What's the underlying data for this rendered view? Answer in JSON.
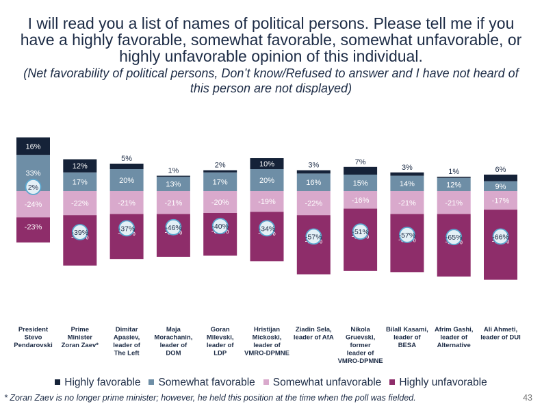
{
  "title": "I will read you a list of names of political persons. Please tell me if you have a highly favorable, somewhat favorable, somewhat unfavorable, or highly unfavorable opinion of this individual.",
  "subtitle": "(Net favorability of political persons, Don’t know/Refused to answer and I have not heard of this person are not displayed)",
  "footnote": "* Zoran Zaev is no longer prime minister; however, he held this position at the time when the poll was fielded.",
  "page_number": "43",
  "colors": {
    "highly_favorable": "#152238",
    "somewhat_favorable": "#6e8ea6",
    "somewhat_unfavorable": "#d9a9cc",
    "highly_unfavorable": "#8e2d6a",
    "net_badge_fill": "#e4f0f6",
    "net_badge_stroke": "#5aa7cf"
  },
  "chart_data": {
    "type": "bar",
    "stacked": "diverging",
    "categories": [
      [
        "President",
        "Stevo",
        "Pendarovski"
      ],
      [
        "Prime",
        "Minister",
        "Zoran Zaev*"
      ],
      [
        "Dimitar",
        "Apasiev,",
        "leader of",
        "The Left"
      ],
      [
        "Maja",
        "Morachanin,",
        "leader of",
        "DOM"
      ],
      [
        "Goran",
        "Milevski,",
        "leader of",
        "LDP"
      ],
      [
        "Hristijan",
        "Mickoski,",
        "leader of",
        "VMRO-DPMNE"
      ],
      [
        "Ziadin Sela,",
        "leader of AfA"
      ],
      [
        "Nikola",
        "Gruevski,",
        "former",
        "leader of",
        "VMRO-DPMNE"
      ],
      [
        "Bilall Kasami,",
        "leader of",
        "BESA"
      ],
      [
        "Afrim Gashi,",
        "leader of",
        "Alternative"
      ],
      [
        "Ali Ahmeti,",
        "leader of DUI"
      ]
    ],
    "series": [
      {
        "name": "Highly favorable",
        "values": [
          16,
          12,
          5,
          1,
          2,
          10,
          3,
          7,
          3,
          1,
          6
        ]
      },
      {
        "name": "Somewhat favorable",
        "values": [
          33,
          17,
          20,
          13,
          17,
          20,
          16,
          15,
          14,
          12,
          9
        ]
      },
      {
        "name": "Somewhat unfavorable",
        "values": [
          -24,
          -22,
          -21,
          -21,
          -20,
          -19,
          -22,
          -16,
          -21,
          -21,
          -17
        ]
      },
      {
        "name": "Highly unfavorable",
        "values": [
          -23,
          -46,
          -41,
          -39,
          -39,
          -45,
          -54,
          -57,
          -53,
          -57,
          -64
        ]
      }
    ],
    "net_favorability": [
      2,
      -39,
      -37,
      -46,
      -40,
      -34,
      -57,
      -51,
      -57,
      -65,
      -66
    ],
    "legend_position": "bottom",
    "grid": false
  }
}
